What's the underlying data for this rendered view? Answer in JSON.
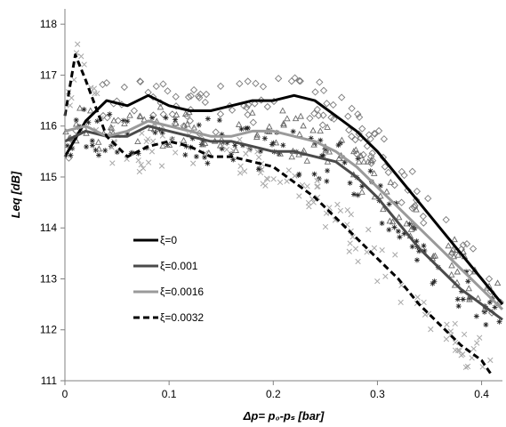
{
  "chart_data": {
    "type": "scatter",
    "title": "",
    "xlabel": "Δp= p₀-pₛ [bar]",
    "ylabel": "Leq  [dB]",
    "xlim": [
      0,
      0.42
    ],
    "ylim": [
      111,
      118.3
    ],
    "x_ticks": [
      "0",
      "0.1",
      "0.2",
      "0.3",
      "0.4"
    ],
    "x_tick_values": [
      0,
      0.1,
      0.2,
      0.3,
      0.4
    ],
    "y_ticks": [
      "111",
      "112",
      "113",
      "114",
      "115",
      "116",
      "117",
      "118"
    ],
    "y_tick_values": [
      111,
      112,
      113,
      114,
      115,
      116,
      117,
      118
    ],
    "grid": false,
    "legend_position": "lower-left inside plot",
    "series": [
      {
        "name": "ξ=0",
        "line_color": "#000000",
        "line_style": "solid",
        "marker": "diamond-open",
        "marker_color": "#7a7a7a",
        "x": [
          0.0,
          0.02,
          0.04,
          0.06,
          0.08,
          0.1,
          0.12,
          0.14,
          0.16,
          0.18,
          0.2,
          0.22,
          0.24,
          0.26,
          0.28,
          0.3,
          0.32,
          0.34,
          0.36,
          0.38,
          0.4,
          0.42
        ],
        "y": [
          115.4,
          116.1,
          116.5,
          116.4,
          116.6,
          116.4,
          116.3,
          116.3,
          116.4,
          116.5,
          116.5,
          116.6,
          116.5,
          116.2,
          115.9,
          115.5,
          115.0,
          114.5,
          114.0,
          113.5,
          113.0,
          112.5
        ]
      },
      {
        "name": "ξ=0.001",
        "line_color": "#4a4a4a",
        "line_style": "solid",
        "marker": "asterisk",
        "marker_color": "#222222",
        "x": [
          0.0,
          0.02,
          0.04,
          0.06,
          0.08,
          0.1,
          0.12,
          0.14,
          0.16,
          0.18,
          0.2,
          0.22,
          0.24,
          0.26,
          0.28,
          0.3,
          0.32,
          0.34,
          0.36,
          0.38,
          0.4,
          0.42
        ],
        "y": [
          115.7,
          115.9,
          115.8,
          115.8,
          116.0,
          115.9,
          115.8,
          115.7,
          115.7,
          115.6,
          115.5,
          115.5,
          115.4,
          115.3,
          115.0,
          114.6,
          114.1,
          113.6,
          113.2,
          112.8,
          112.5,
          112.2
        ]
      },
      {
        "name": "ξ=0.0016",
        "line_color": "#9a9a9a",
        "line_style": "solid",
        "marker": "triangle-open",
        "marker_color": "#6a6a6a",
        "x": [
          0.0,
          0.02,
          0.04,
          0.06,
          0.08,
          0.1,
          0.12,
          0.14,
          0.16,
          0.18,
          0.2,
          0.22,
          0.24,
          0.26,
          0.28,
          0.3,
          0.32,
          0.34,
          0.36,
          0.38,
          0.4,
          0.42
        ],
        "y": [
          115.9,
          116.0,
          115.8,
          115.9,
          116.1,
          116.0,
          115.9,
          115.8,
          115.8,
          115.9,
          115.9,
          115.8,
          115.7,
          115.5,
          115.2,
          114.8,
          114.4,
          114.0,
          113.6,
          113.2,
          112.8,
          112.4
        ]
      },
      {
        "name": "ξ=0.0032",
        "line_color": "#000000",
        "line_style": "dashed",
        "marker": "x-cross",
        "marker_color": "#a8a8a8",
        "x": [
          0.0,
          0.01,
          0.02,
          0.04,
          0.06,
          0.08,
          0.1,
          0.12,
          0.14,
          0.16,
          0.18,
          0.2,
          0.22,
          0.24,
          0.26,
          0.28,
          0.3,
          0.32,
          0.34,
          0.36,
          0.38,
          0.4,
          0.41
        ],
        "y": [
          116.2,
          117.4,
          116.9,
          115.8,
          115.4,
          115.6,
          115.7,
          115.6,
          115.4,
          115.4,
          115.3,
          115.2,
          114.9,
          114.6,
          114.2,
          113.8,
          113.4,
          113.0,
          112.5,
          112.1,
          111.7,
          111.4,
          111.1
        ]
      }
    ]
  }
}
